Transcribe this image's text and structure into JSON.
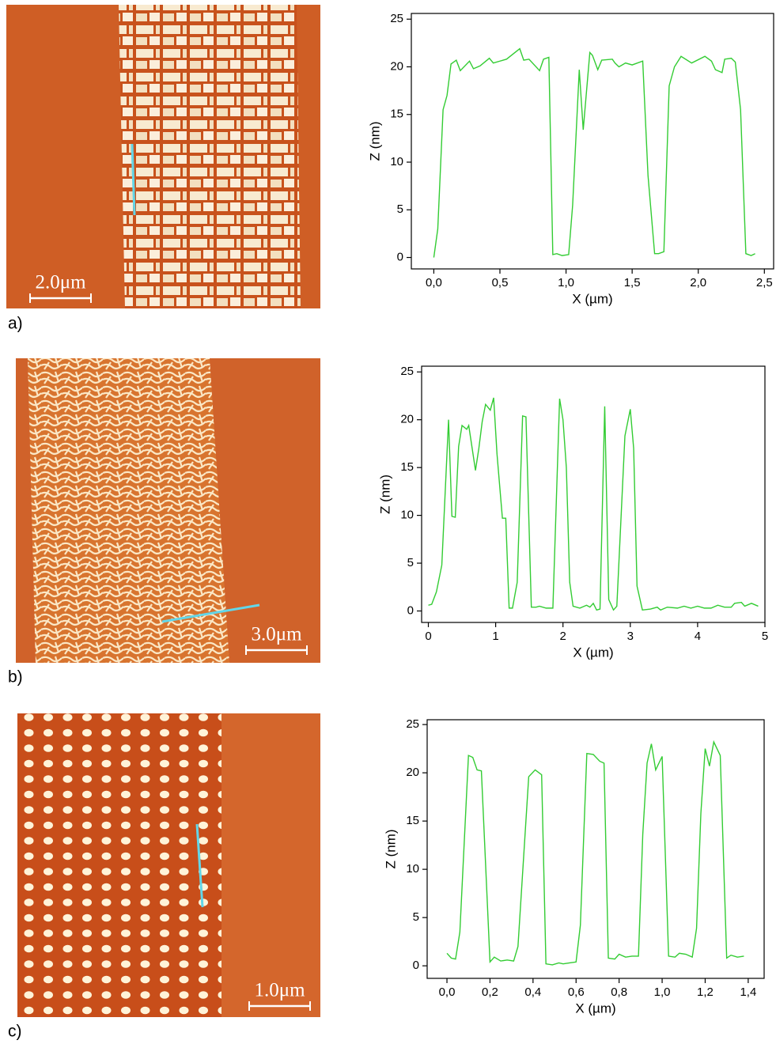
{
  "chart_data": [
    {
      "type": "line",
      "color": "#33cc33",
      "xlabel": "X (µm)",
      "ylabel": "Z (nm)",
      "xlim": [
        -0.17,
        2.57
      ],
      "ylim": [
        -1.2,
        25.6
      ],
      "xticks": [
        {
          "value": 0,
          "label": "0,0"
        },
        {
          "value": 0.5,
          "label": "0,5"
        },
        {
          "value": 1,
          "label": "1,0"
        },
        {
          "value": 1.5,
          "label": "1,5"
        },
        {
          "value": 2,
          "label": "2,0"
        },
        {
          "value": 2.5,
          "label": "2,5"
        }
      ],
      "yticks": [
        0,
        5,
        10,
        15,
        20,
        25
      ],
      "x": [
        0.0,
        0.03,
        0.07,
        0.1,
        0.13,
        0.17,
        0.2,
        0.27,
        0.3,
        0.35,
        0.42,
        0.45,
        0.5,
        0.55,
        0.65,
        0.68,
        0.72,
        0.8,
        0.83,
        0.87,
        0.9,
        0.93,
        0.97,
        1.02,
        1.05,
        1.1,
        1.13,
        1.18,
        1.2,
        1.24,
        1.27,
        1.35,
        1.37,
        1.4,
        1.45,
        1.5,
        1.58,
        1.62,
        1.67,
        1.7,
        1.74,
        1.78,
        1.82,
        1.87,
        1.95,
        2.05,
        2.1,
        2.13,
        2.18,
        2.2,
        2.25,
        2.28,
        2.32,
        2.36,
        2.4,
        2.43
      ],
      "values": [
        0,
        3,
        15.5,
        17,
        20.3,
        20.7,
        19.6,
        20.6,
        19.8,
        20.1,
        20.9,
        20.4,
        20.6,
        20.8,
        21.9,
        20.7,
        20.8,
        19.6,
        20.8,
        21,
        0.3,
        0.4,
        0.2,
        0.3,
        5.5,
        19.7,
        13.4,
        21.5,
        21.2,
        19.7,
        20.7,
        20.8,
        20.4,
        20,
        20.4,
        20.2,
        20.6,
        8.6,
        0.4,
        0.4,
        0.6,
        18,
        20,
        21.1,
        20.4,
        21.1,
        20.6,
        19.7,
        19.4,
        20.8,
        20.9,
        20.5,
        15.5,
        0.4,
        0.2,
        0.4
      ]
    },
    {
      "type": "line",
      "color": "#33cc33",
      "xlabel": "X (µm)",
      "ylabel": "Z (nm)",
      "xlim": [
        -0.1,
        5.0
      ],
      "ylim": [
        -1.2,
        25.6
      ],
      "xticks": [
        0,
        1,
        2,
        3,
        4,
        5
      ],
      "yticks": [
        0,
        5,
        10,
        15,
        20,
        25
      ],
      "x": [
        0,
        0.05,
        0.12,
        0.2,
        0.3,
        0.35,
        0.4,
        0.45,
        0.5,
        0.57,
        0.6,
        0.7,
        0.75,
        0.8,
        0.85,
        0.92,
        0.97,
        1.02,
        1.1,
        1.15,
        1.2,
        1.25,
        1.32,
        1.4,
        1.45,
        1.53,
        1.6,
        1.65,
        1.75,
        1.85,
        1.95,
        2.0,
        2.05,
        2.1,
        2.15,
        2.25,
        2.35,
        2.4,
        2.45,
        2.5,
        2.55,
        2.62,
        2.68,
        2.75,
        2.8,
        2.92,
        3.0,
        3.05,
        3.1,
        3.18,
        3.3,
        3.4,
        3.45,
        3.55,
        3.7,
        3.8,
        3.9,
        4.0,
        4.1,
        4.2,
        4.3,
        4.4,
        4.5,
        4.55,
        4.65,
        4.7,
        4.8,
        4.9
      ],
      "values": [
        0.6,
        0.7,
        2,
        4.8,
        20,
        9.9,
        9.8,
        17.2,
        19.4,
        19,
        19.4,
        14.7,
        17,
        19.8,
        21.6,
        21,
        22.3,
        16.4,
        9.7,
        9.7,
        0.3,
        0.3,
        3,
        20.4,
        20.3,
        0.4,
        0.4,
        0.5,
        0.3,
        0.3,
        22.2,
        20,
        15,
        3,
        0.5,
        0.3,
        0.6,
        0.4,
        0.8,
        0.1,
        0.2,
        21.4,
        1.2,
        0.1,
        0.5,
        18.3,
        21.1,
        17,
        2.6,
        0.1,
        0.2,
        0.4,
        0.1,
        0.4,
        0.3,
        0.5,
        0.3,
        0.5,
        0.3,
        0.3,
        0.6,
        0.4,
        0.4,
        0.8,
        0.9,
        0.5,
        0.8,
        0.5
      ]
    },
    {
      "type": "line",
      "color": "#33cc33",
      "xlabel": "X (µm)",
      "ylabel": "Z (nm)",
      "xlim": [
        -0.092,
        1.474
      ],
      "ylim": [
        -1.3,
        25.5
      ],
      "xticks": [
        {
          "value": 0,
          "label": "0,0"
        },
        {
          "value": 0.2,
          "label": "0,2"
        },
        {
          "value": 0.4,
          "label": "0,4"
        },
        {
          "value": 0.6,
          "label": "0,6"
        },
        {
          "value": 0.8,
          "label": "0,8"
        },
        {
          "value": 1,
          "label": "1,0"
        },
        {
          "value": 1.2,
          "label": "1,2"
        },
        {
          "value": 1.4,
          "label": "1,4"
        }
      ],
      "yticks": [
        0,
        5,
        10,
        15,
        20,
        25
      ],
      "x": [
        0,
        0.02,
        0.04,
        0.06,
        0.1,
        0.12,
        0.14,
        0.16,
        0.2,
        0.22,
        0.25,
        0.28,
        0.31,
        0.33,
        0.38,
        0.41,
        0.44,
        0.46,
        0.49,
        0.52,
        0.54,
        0.57,
        0.6,
        0.62,
        0.65,
        0.68,
        0.71,
        0.73,
        0.75,
        0.78,
        0.8,
        0.83,
        0.86,
        0.89,
        0.91,
        0.93,
        0.95,
        0.97,
        1.0,
        1.03,
        1.06,
        1.08,
        1.11,
        1.14,
        1.16,
        1.18,
        1.2,
        1.22,
        1.24,
        1.27,
        1.3,
        1.32,
        1.35,
        1.38
      ],
      "values": [
        1.3,
        0.8,
        0.7,
        3.5,
        21.8,
        21.6,
        20.3,
        20.2,
        0.4,
        0.9,
        0.5,
        0.6,
        0.5,
        2,
        19.6,
        20.3,
        19.8,
        0.2,
        0.1,
        0.3,
        0.2,
        0.3,
        0.4,
        4.2,
        22,
        21.9,
        21.2,
        21,
        0.8,
        0.7,
        1.2,
        0.9,
        1.0,
        1.0,
        13.6,
        21,
        23,
        20.3,
        21.7,
        1.0,
        0.9,
        1.3,
        1.2,
        0.9,
        3.9,
        15.8,
        22.5,
        20.7,
        23.2,
        21.8,
        0.8,
        1.1,
        0.9,
        1.0
      ]
    }
  ],
  "panels": [
    {
      "label": "a)",
      "scale_bar": "2.0μm"
    },
    {
      "label": "b)",
      "scale_bar": "3.0μm"
    },
    {
      "label": "c)",
      "scale_bar": "1.0μm"
    }
  ]
}
